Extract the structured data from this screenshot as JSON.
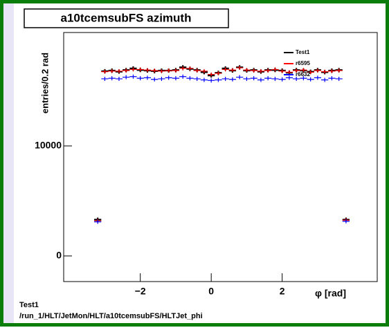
{
  "chart_data": {
    "type": "errorbar",
    "title": "a10tcemsubFS azimuth",
    "y_label": "entries/0.2 rad",
    "x_label": "φ [rad]",
    "footer": [
      "Test1",
      "/run_1/HLT/JetMon/HLT/a10tcemsubFS/HLTJet_phi"
    ],
    "x": [
      -3.2,
      -3.0,
      -2.8,
      -2.6,
      -2.4,
      -2.2,
      -2.0,
      -1.8,
      -1.6,
      -1.4,
      -1.2,
      -1.0,
      -0.8,
      -0.6,
      -0.4,
      -0.2,
      0.0,
      0.2,
      0.4,
      0.6,
      0.8,
      1.0,
      1.2,
      1.4,
      1.6,
      1.8,
      2.0,
      2.2,
      2.4,
      2.6,
      2.8,
      3.0,
      3.2,
      3.4,
      3.6,
      3.8
    ],
    "series": [
      {
        "name": "Test1",
        "color": "#000000",
        "values": [
          3300,
          16800,
          16850,
          16750,
          16900,
          17050,
          16900,
          16850,
          16800,
          16850,
          16850,
          16900,
          17150,
          17000,
          16900,
          16700,
          16400,
          16650,
          17050,
          16850,
          17150,
          16850,
          16900,
          16750,
          16900,
          16900,
          16850,
          16650,
          16900,
          16850,
          16750,
          16900,
          16700,
          16850,
          16900,
          3300
        ]
      },
      {
        "name": "r6595",
        "color": "#ff0000",
        "values": [
          3200,
          16750,
          16800,
          16800,
          16850,
          16950,
          16950,
          16900,
          16850,
          16800,
          16850,
          16850,
          17050,
          17050,
          16850,
          16800,
          16500,
          16600,
          16950,
          16900,
          17100,
          16900,
          16850,
          16800,
          16850,
          16950,
          16800,
          16700,
          16850,
          16900,
          16700,
          16850,
          16750,
          16800,
          16850,
          3250
        ]
      },
      {
        "name": "r6632",
        "color": "#0000ff",
        "values": [
          3100,
          16100,
          16150,
          16100,
          16250,
          16300,
          16150,
          16200,
          16050,
          16100,
          16200,
          16150,
          16300,
          16150,
          16100,
          16000,
          15950,
          16000,
          16100,
          16050,
          16250,
          16100,
          16150,
          16000,
          16150,
          16100,
          16050,
          16200,
          16100,
          16150,
          16050,
          16200,
          16000,
          16150,
          16100,
          3150
        ]
      }
    ],
    "xlim": [
      -4.16,
      4.68
    ],
    "ylim": [
      -2330,
      20310
    ],
    "xticks": [
      {
        "value": -2,
        "label": "−2"
      },
      0,
      2
    ],
    "yticks": [
      0,
      10000
    ]
  }
}
